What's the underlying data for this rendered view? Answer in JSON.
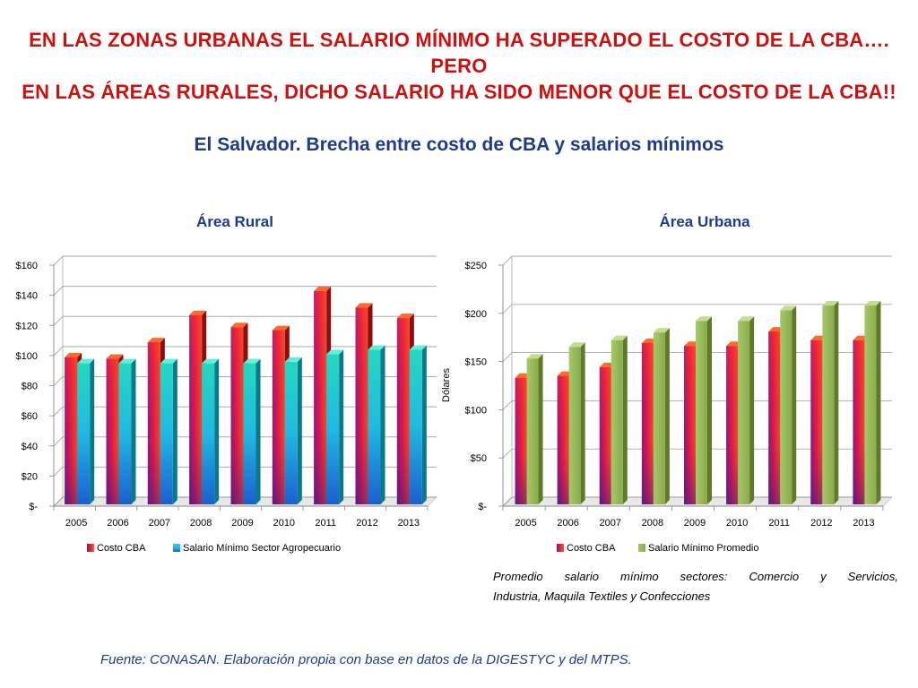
{
  "headline": {
    "line1": "EN LAS ZONAS URBANAS EL SALARIO MÍNIMO HA SUPERADO EL COSTO DE LA CBA…. PERO",
    "line2": "EN LAS ÁREAS RURALES, DICHO SALARIO HA SIDO MENOR QUE EL COSTO DE LA CBA!!"
  },
  "subtitle": "El Salvador. Brecha entre costo  de CBA  y salarios mínimos",
  "note": {
    "line1": "Promedio salario mínimo sectores: Comercio y Servicios,",
    "line2": "Industria, Maquila Textiles y Confecciones"
  },
  "source": "Fuente: CONASAN. Elaboración propia con base en datos de la DIGESTYC y del MTPS.",
  "colors": {
    "headline": "#cc1111",
    "title": "#1f3a8a",
    "cba": "#d81a5a",
    "rural_wage": "#1fc0d8",
    "urban_wage": "#9bbb59"
  },
  "chart_data": [
    {
      "id": "rural",
      "type": "bar",
      "title": "Área Rural",
      "categories": [
        "2005",
        "2006",
        "2007",
        "2008",
        "2009",
        "2010",
        "2011",
        "2012",
        "2013"
      ],
      "series": [
        {
          "name": "Costo CBA",
          "values": [
            100,
            99,
            110,
            128,
            120,
            118,
            144,
            133,
            126
          ]
        },
        {
          "name": "Salario Mínimo Sector Agropecuario",
          "values": [
            96,
            96,
            96,
            96,
            96,
            97,
            102,
            105,
            105
          ]
        }
      ],
      "ylim": [
        0,
        160
      ],
      "ytick_values": [
        0,
        20,
        40,
        60,
        80,
        100,
        120,
        140,
        160
      ],
      "ytick_labels": [
        "$-",
        "$20",
        "$40",
        "$60",
        "$80",
        "$100",
        "$120",
        "$140",
        "$160"
      ],
      "xlabel": "",
      "ylabel": "",
      "grid": true,
      "legend": "bottom"
    },
    {
      "id": "urban",
      "type": "bar",
      "title": "Área Urbana",
      "categories": [
        "2005",
        "2006",
        "2007",
        "2008",
        "2009",
        "2010",
        "2011",
        "2012",
        "2013"
      ],
      "series": [
        {
          "name": "Costo CBA",
          "values": [
            135,
            137,
            146,
            171,
            168,
            168,
            183,
            174,
            174
          ]
        },
        {
          "name": "Salario Mínimo Promedio",
          "values": [
            155,
            167,
            174,
            182,
            194,
            194,
            205,
            210,
            210
          ]
        }
      ],
      "ylim": [
        0,
        250
      ],
      "ytick_values": [
        0,
        50,
        100,
        150,
        200,
        250
      ],
      "ytick_labels": [
        "$-",
        "$50",
        "$100",
        "$150",
        "$200",
        "$250"
      ],
      "xlabel": "",
      "ylabel": "Dólares",
      "grid": true,
      "legend": "bottom"
    }
  ]
}
